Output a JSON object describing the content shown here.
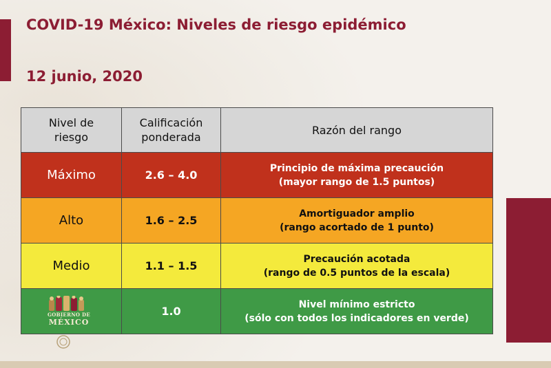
{
  "slide": {
    "title": "COVID-19 México: Niveles de riesgo epidémico",
    "date": "12 junio, 2020"
  },
  "table": {
    "headers": {
      "level_line1": "Nivel de",
      "level_line2": "riesgo",
      "score_line1": "Calificación",
      "score_line2": "ponderada",
      "reason": "Razón del rango"
    },
    "rows": [
      {
        "level": "Máximo",
        "score": "2.6 – 4.0",
        "reason_line1": "Principio de máxima precaución",
        "reason_line2": "(mayor rango de 1.5 puntos)",
        "color": "#c0311c"
      },
      {
        "level": "Alto",
        "score": "1.6 – 2.5",
        "reason_line1": "Amortiguador amplio",
        "reason_line2": "(rango acortado de 1 punto)",
        "color": "#f5a623"
      },
      {
        "level": "Medio",
        "score": "1.1 – 1.5",
        "reason_line1": "Precaución acotada",
        "reason_line2": "(rango de 0.5 puntos de la escala)",
        "color": "#f4ea3c"
      },
      {
        "level": "",
        "score": "1.0",
        "reason_line1": "Nivel mínimo estricto",
        "reason_line2": "(sólo con todos los indicadores en verde)",
        "color": "#3f9a46"
      }
    ]
  },
  "logo": {
    "line1": "GOBIERNO DE",
    "line2": "MÉXICO",
    "icon": "gobierno-de-mexico-logo-icon"
  },
  "colors": {
    "brand": "#8c1d33",
    "background": "#f4f1ec"
  }
}
